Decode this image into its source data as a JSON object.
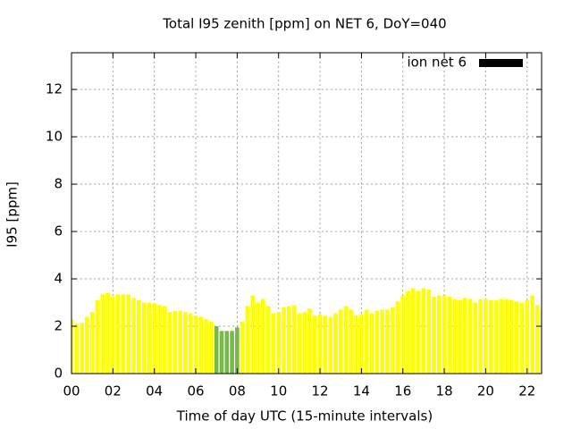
{
  "chart_data": {
    "type": "bar",
    "title": "Total I95 zenith [ppm] on NET 6, DoY=040",
    "x_label": "Time of day UTC (15-minute intervals)",
    "y_label": "I95 [ppm]",
    "x": [
      0,
      0.25,
      0.5,
      0.75,
      1,
      1.25,
      1.5,
      1.75,
      2,
      2.25,
      2.5,
      2.75,
      3,
      3.25,
      3.5,
      3.75,
      4,
      4.25,
      4.5,
      4.75,
      5,
      5.25,
      5.5,
      5.75,
      6,
      6.25,
      6.5,
      6.75,
      7,
      7.25,
      7.5,
      7.75,
      8,
      8.25,
      8.5,
      8.75,
      9,
      9.25,
      9.5,
      9.75,
      10,
      10.25,
      10.5,
      10.75,
      11,
      11.25,
      11.5,
      11.75,
      12,
      12.25,
      12.5,
      12.75,
      13,
      13.25,
      13.5,
      13.75,
      14,
      14.25,
      14.5,
      14.75,
      15,
      15.25,
      15.5,
      15.75,
      16,
      16.25,
      16.5,
      16.75,
      17,
      17.25,
      17.5,
      17.75,
      18,
      18.25,
      18.5,
      18.75,
      19,
      19.25,
      19.5,
      19.75,
      20,
      20.25,
      20.5,
      20.75,
      21,
      21.25,
      21.5,
      21.75,
      22,
      22.25,
      22.5,
      22.75
    ],
    "series": [
      {
        "name": "ion net 6",
        "color": "#ffff00",
        "legend_color": "#000000",
        "highlight_color": "#77bb44",
        "highlight_xlim": [
          7,
          8
        ],
        "values": [
          2.3,
          2.1,
          2.15,
          2.4,
          2.6,
          3.1,
          3.35,
          3.4,
          3.25,
          3.35,
          3.35,
          3.35,
          3.2,
          3.1,
          3.0,
          3.0,
          2.95,
          2.9,
          2.85,
          2.6,
          2.65,
          2.65,
          2.6,
          2.55,
          2.45,
          2.4,
          2.3,
          2.2,
          2.0,
          1.8,
          1.8,
          1.8,
          1.95,
          2.2,
          2.85,
          3.3,
          3.0,
          3.15,
          2.85,
          2.55,
          2.6,
          2.8,
          2.85,
          2.9,
          2.55,
          2.6,
          2.75,
          2.45,
          2.5,
          2.45,
          2.4,
          2.55,
          2.7,
          2.85,
          2.7,
          2.45,
          2.5,
          2.7,
          2.55,
          2.65,
          2.7,
          2.7,
          2.8,
          3.05,
          3.3,
          3.5,
          3.6,
          3.5,
          3.6,
          3.55,
          3.25,
          3.3,
          3.3,
          3.25,
          3.15,
          3.1,
          3.2,
          3.15,
          3.0,
          3.15,
          3.15,
          3.1,
          3.1,
          3.15,
          3.15,
          3.1,
          3.05,
          3.0,
          3.1,
          3.3,
          2.9,
          2.7
        ]
      }
    ],
    "bar_width": 0.2,
    "xlim": [
      0,
      22.7
    ],
    "ylim": [
      0,
      13.55
    ],
    "xticks": [
      {
        "value": 0,
        "label": "00"
      },
      {
        "value": 2,
        "label": "02"
      },
      {
        "value": 4,
        "label": "04"
      },
      {
        "value": 6,
        "label": "06"
      },
      {
        "value": 8,
        "label": "08"
      },
      {
        "value": 10,
        "label": "10"
      },
      {
        "value": 12,
        "label": "12"
      },
      {
        "value": 14,
        "label": "14"
      },
      {
        "value": 16,
        "label": "16"
      },
      {
        "value": 18,
        "label": "18"
      },
      {
        "value": 20,
        "label": "20"
      },
      {
        "value": 22,
        "label": "22"
      }
    ],
    "yticks": [
      0,
      2,
      4,
      6,
      8,
      10,
      12
    ],
    "grid": true,
    "legend": "top-right"
  }
}
